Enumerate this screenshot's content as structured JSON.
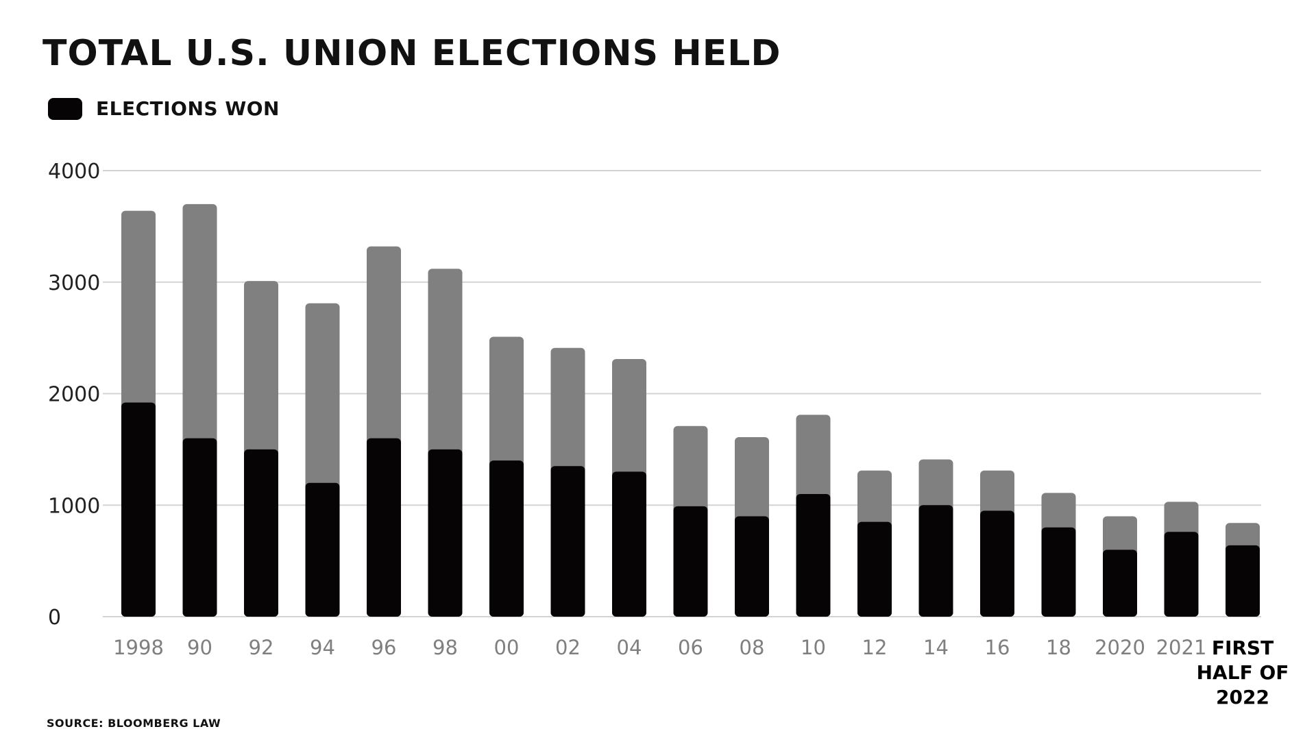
{
  "chart_data": {
    "type": "bar",
    "title": "TOTAL U.S. UNION ELECTIONS HELD",
    "legend": {
      "label": "ELECTIONS WON",
      "placement": "top-left"
    },
    "source": "SOURCE: BLOOMBERG LAW",
    "xlabel": "",
    "ylabel": "",
    "ylim": [
      0,
      4000
    ],
    "yticks": [
      0,
      1000,
      2000,
      3000,
      4000
    ],
    "grid": true,
    "stacked_overlay": true,
    "categories": [
      "1998",
      "90",
      "92",
      "94",
      "96",
      "98",
      "00",
      "02",
      "04",
      "06",
      "08",
      "10",
      "12",
      "14",
      "16",
      "18",
      "2020",
      "2021",
      "FIRST HALF OF 2022"
    ],
    "highlighted_category": "FIRST HALF OF 2022",
    "series": [
      {
        "key": "held",
        "values": [
          3640,
          3700,
          3010,
          2810,
          3320,
          3120,
          2510,
          2410,
          2310,
          1710,
          1610,
          1810,
          1310,
          1410,
          1310,
          1110,
          900,
          1030,
          840
        ]
      },
      {
        "name": "ELECTIONS WON",
        "key": "won",
        "values": [
          1920,
          1600,
          1500,
          1200,
          1600,
          1500,
          1400,
          1350,
          1300,
          990,
          900,
          1100,
          850,
          1000,
          950,
          800,
          600,
          760,
          640
        ]
      }
    ],
    "colors": {
      "held": "#808080",
      "won": "#060404",
      "grid": "#d3d3d3",
      "tick_label": "#7f7f7f",
      "axis_label": "#222222",
      "highlight_label": "#000000"
    }
  }
}
